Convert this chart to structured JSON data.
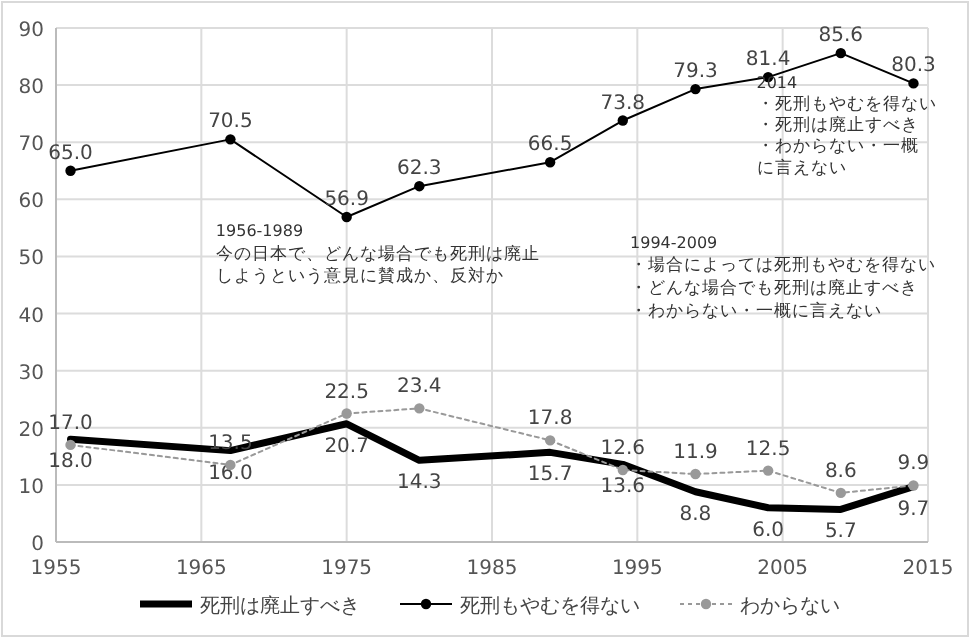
{
  "chart_data": {
    "type": "line",
    "x": [
      1956,
      1967,
      1975,
      1980,
      1989,
      1994,
      1999,
      2004,
      2009,
      2014
    ],
    "xlim": [
      1955,
      2015
    ],
    "xticks": [
      1955,
      1965,
      1975,
      1985,
      1995,
      2005,
      2015
    ],
    "ylim": [
      0,
      90
    ],
    "yticks": [
      0,
      10,
      20,
      30,
      40,
      50,
      60,
      70,
      80,
      90
    ],
    "grid": true,
    "legend": "bottom",
    "series": [
      {
        "name": "死刑は廃止すべき",
        "color": "#000000",
        "line_style": "solid",
        "marker": "none",
        "values": [
          18.0,
          16.0,
          20.7,
          14.3,
          15.7,
          13.6,
          8.8,
          6.0,
          5.7,
          9.7
        ],
        "value_labels": [
          "18.0",
          "16.0",
          "20.7",
          "14.3",
          "15.7",
          "13.6",
          "8.8",
          "6.0",
          "5.7",
          "9.7"
        ]
      },
      {
        "name": "死刑もやむを得ない",
        "color": "#000000",
        "line_style": "solid",
        "marker": "circle",
        "values": [
          65.0,
          70.5,
          56.9,
          62.3,
          66.5,
          73.8,
          79.3,
          81.4,
          85.6,
          80.3
        ],
        "value_labels": [
          "65.0",
          "70.5",
          "56.9",
          "62.3",
          "66.5",
          "73.8",
          "79.3",
          "81.4",
          "85.6",
          "80.3"
        ]
      },
      {
        "name": "わからない",
        "color": "#999999",
        "line_style": "dotted",
        "marker": "circle",
        "values": [
          17.0,
          13.5,
          22.5,
          23.4,
          17.8,
          12.6,
          11.9,
          12.5,
          8.6,
          9.9
        ],
        "value_labels": [
          "17.0",
          "13.5",
          "22.5",
          "23.4",
          "17.8",
          "12.6",
          "11.9",
          "12.5",
          "8.6",
          "9.9"
        ]
      }
    ],
    "annotations": [
      "1956-1989",
      "今の日本で、どんな場合でも死刑は廃止しようという意見に賛成か、反対か",
      "1994-2009",
      "・場合によっては死刑もやむを得ない",
      "・どんな場合でも死刑は廃止すべき",
      "・わからない・一概に言えない",
      "2014",
      "・死刑もやむを得ない",
      "・死刑は廃止すべき",
      "・わからない・一概に言えない"
    ]
  }
}
